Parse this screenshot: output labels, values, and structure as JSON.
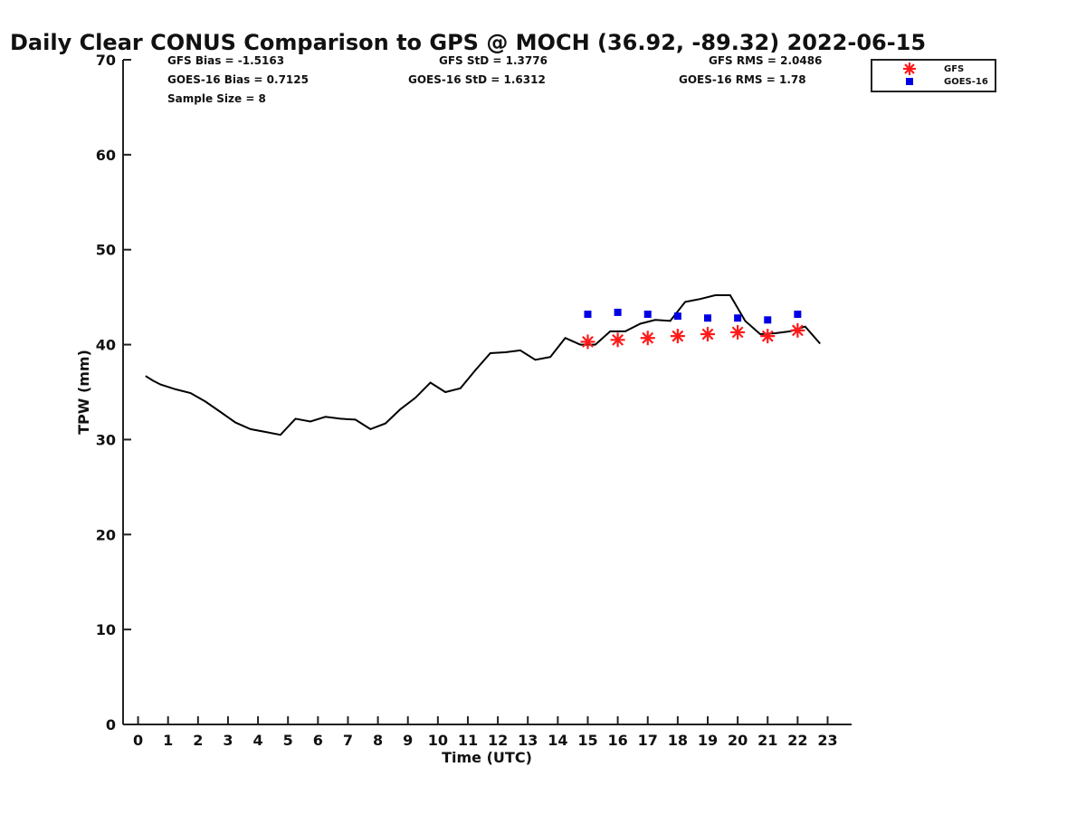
{
  "chart_data": {
    "type": "line",
    "title": "Daily Clear CONUS Comparison to GPS @ MOCH (36.92, -89.32) 2022-06-15",
    "xlabel": "Time (UTC)",
    "ylabel": "TPW (mm)",
    "xlim": [
      -0.5,
      23.8
    ],
    "ylim": [
      0,
      70
    ],
    "x_ticks": [
      0,
      1,
      2,
      3,
      4,
      5,
      6,
      7,
      8,
      9,
      10,
      11,
      12,
      13,
      14,
      15,
      16,
      17,
      18,
      19,
      20,
      21,
      22,
      23
    ],
    "y_ticks": [
      0,
      10,
      20,
      30,
      40,
      50,
      60,
      70
    ],
    "grid": false,
    "legend_position": "top-right",
    "stats": [
      {
        "key": "gfs_bias",
        "text": "GFS Bias = -1.5163"
      },
      {
        "key": "gfs_std",
        "text": "GFS StD = 1.3776"
      },
      {
        "key": "gfs_rms",
        "text": "GFS RMS = 2.0486"
      },
      {
        "key": "goes_bias",
        "text": "GOES-16 Bias = 0.7125"
      },
      {
        "key": "goes_std",
        "text": "GOES-16 StD = 1.6312"
      },
      {
        "key": "goes_rms",
        "text": "GOES-16 RMS = 1.78"
      },
      {
        "key": "sample_size",
        "text": "Sample Size = 8"
      }
    ],
    "series": [
      {
        "marker": "line",
        "color": "#000000",
        "x": [
          0.25,
          0.5,
          0.75,
          1.25,
          1.75,
          2.25,
          2.75,
          3.25,
          3.75,
          4.25,
          4.75,
          5.25,
          5.75,
          6.25,
          6.75,
          7.25,
          7.75,
          8.25,
          8.75,
          9.25,
          9.75,
          10.25,
          10.75,
          11.25,
          11.75,
          12.25,
          12.75,
          13.25,
          13.75,
          14.25,
          14.75,
          15.25,
          15.75,
          16.25,
          16.75,
          17.25,
          17.75,
          18.25,
          18.75,
          19.25,
          19.75,
          20.25,
          20.75,
          21.25,
          21.75,
          22.25,
          22.75
        ],
        "y": [
          36.7,
          36.2,
          35.8,
          35.3,
          34.9,
          34.0,
          32.9,
          31.8,
          31.1,
          30.8,
          30.5,
          32.2,
          31.9,
          32.4,
          32.2,
          32.1,
          31.1,
          31.7,
          33.2,
          34.4,
          36.0,
          35.0,
          35.4,
          37.3,
          39.1,
          39.2,
          39.4,
          38.4,
          38.7,
          40.7,
          40.0,
          40.0,
          41.4,
          41.4,
          42.2,
          42.6,
          42.5,
          44.5,
          44.8,
          45.2,
          45.2,
          42.5,
          41.1,
          41.2,
          41.4,
          41.9,
          40.1
        ]
      },
      {
        "name": "GFS",
        "marker": "asterisk",
        "color": "#ff1a1a",
        "x": [
          15,
          16,
          17,
          18,
          19,
          20,
          21,
          22
        ],
        "y": [
          40.3,
          40.5,
          40.7,
          40.9,
          41.1,
          41.3,
          40.9,
          41.5
        ]
      },
      {
        "name": "GOES-16",
        "marker": "square",
        "color": "#0000e6",
        "x": [
          15,
          16,
          17,
          18,
          19,
          20,
          21,
          22
        ],
        "y": [
          43.2,
          43.4,
          43.2,
          43.0,
          42.8,
          42.8,
          42.6,
          43.2
        ]
      }
    ]
  }
}
